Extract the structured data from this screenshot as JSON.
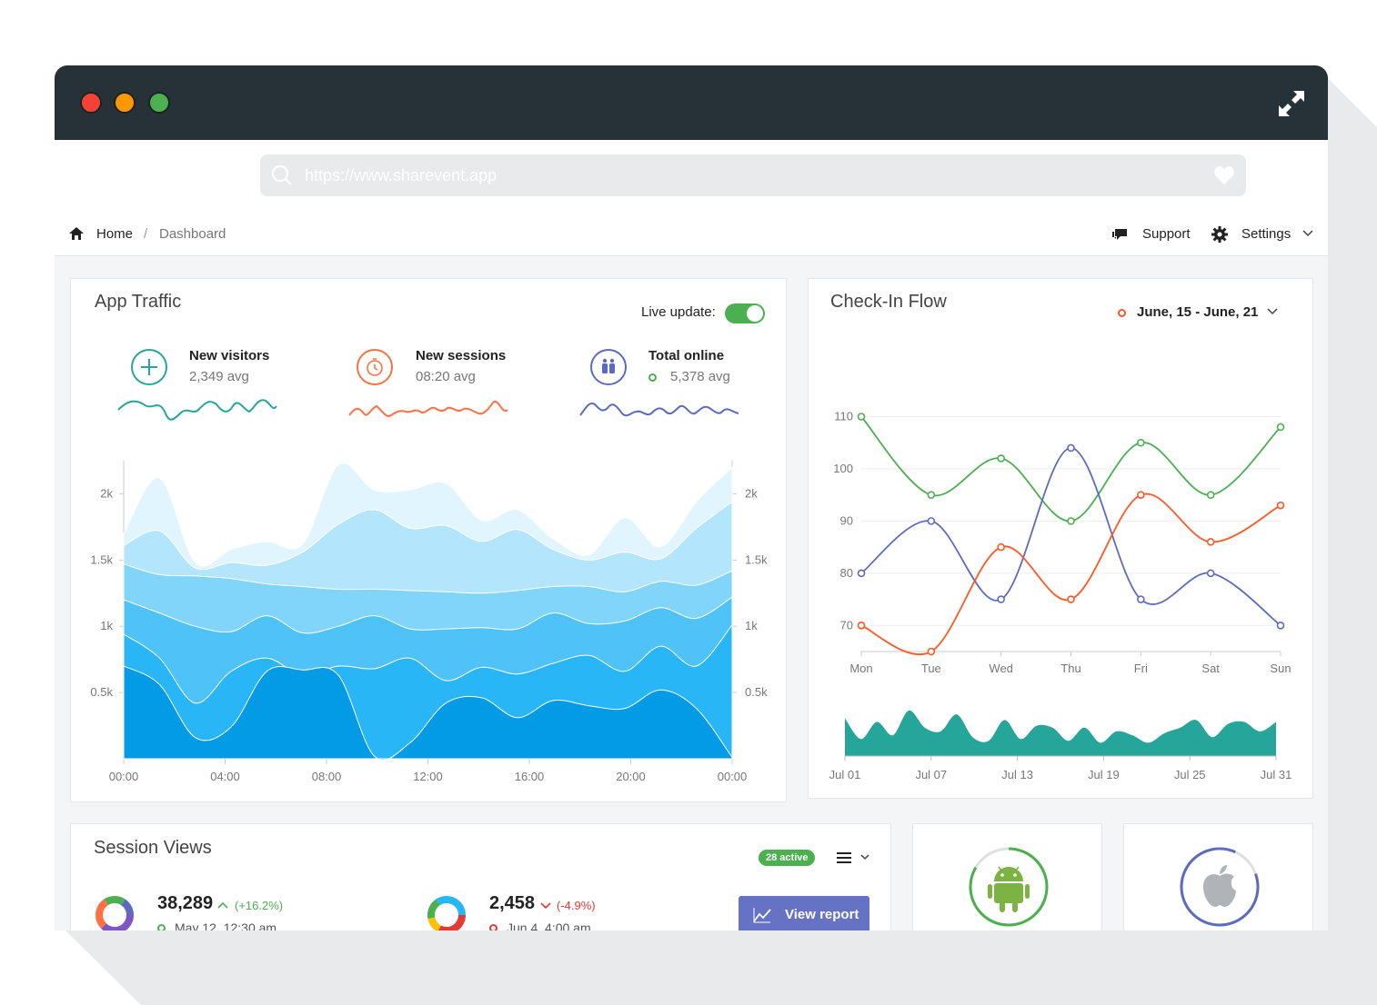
{
  "browser": {
    "url": "https://www.sharevent.app"
  },
  "breadcrumb": {
    "home": "Home",
    "separator": "/",
    "current": "Dashboard"
  },
  "topnav": {
    "support": "Support",
    "settings": "Settings"
  },
  "app_traffic": {
    "title": "App Traffic",
    "live_update_label": "Live update:",
    "live_update_on": true,
    "stats": [
      {
        "label": "New visitors",
        "value": "2,349 avg",
        "color": "#26a69a",
        "icon": "plus-icon"
      },
      {
        "label": "New sessions",
        "value": "08:20 avg",
        "color": "#ff7043",
        "icon": "clock-icon"
      },
      {
        "label": "Total online",
        "value": "5,378 avg",
        "color": "#5c6bc0",
        "icon": "users-icon"
      }
    ]
  },
  "checkin": {
    "title": "Check-In Flow",
    "date_range": "June, 15 - June, 21"
  },
  "session_views": {
    "title": "Session Views",
    "badge": "28 active",
    "view_report": "View report",
    "items": [
      {
        "value": "38,289",
        "change": "(+16.2%)",
        "date": "May 12, 12:30 am",
        "trend": "up",
        "color": "#4caf50"
      },
      {
        "value": "2,458",
        "change": "(-4.9%)",
        "date": "Jun 4, 4:00 am",
        "trend": "down",
        "color": "#e53935"
      }
    ]
  },
  "platforms": [
    {
      "name": "android-icon",
      "color": "#4caf50"
    },
    {
      "name": "apple-icon",
      "color": "#5c6bc0"
    }
  ],
  "chart_data": [
    {
      "type": "area",
      "stacked": true,
      "x_ticks": [
        "00:00",
        "04:00",
        "08:00",
        "12:00",
        "16:00",
        "20:00",
        "00:00"
      ],
      "y_ticks": [
        "0.5k",
        "1k",
        "1.5k",
        "2k"
      ],
      "ylim": [
        0,
        2250
      ],
      "colors": [
        "#039be5",
        "#29b6f6",
        "#4fc3f7",
        "#81d4fa",
        "#b3e5fc",
        "#e1f5fe"
      ],
      "layers": [
        [
          700,
          560,
          160,
          240,
          660,
          670,
          630,
          20,
          120,
          420,
          460,
          310,
          440,
          400,
          380,
          520,
          380,
          10
        ],
        [
          940,
          760,
          420,
          660,
          760,
          630,
          700,
          680,
          760,
          590,
          690,
          640,
          720,
          780,
          660,
          850,
          700,
          1010
        ],
        [
          1200,
          1100,
          1000,
          960,
          1080,
          950,
          1000,
          1080,
          980,
          980,
          990,
          980,
          1100,
          1020,
          1040,
          1140,
          1060,
          1220
        ],
        [
          1470,
          1390,
          1380,
          1360,
          1320,
          1300,
          1280,
          1280,
          1270,
          1260,
          1250,
          1270,
          1300,
          1300,
          1260,
          1340,
          1310,
          1420
        ],
        [
          1610,
          1720,
          1440,
          1480,
          1460,
          1560,
          1770,
          1880,
          1740,
          1760,
          1640,
          1730,
          1580,
          1500,
          1560,
          1510,
          1740,
          1940
        ],
        [
          1700,
          2120,
          1480,
          1580,
          1640,
          1620,
          2220,
          2030,
          2030,
          2080,
          1800,
          1880,
          1660,
          1540,
          1820,
          1600,
          1940,
          2200
        ]
      ]
    },
    {
      "type": "line",
      "categories": [
        "Mon",
        "Tue",
        "Wed",
        "Thu",
        "Fri",
        "Sat",
        "Sun"
      ],
      "y_ticks": [
        70,
        80,
        90,
        100,
        110
      ],
      "ylim": [
        65,
        112
      ],
      "series": [
        {
          "color": "#4caf50",
          "values": [
            110,
            95,
            102,
            90,
            105,
            95,
            108
          ]
        },
        {
          "color": "#5c6bc0",
          "values": [
            80,
            90,
            75,
            104,
            75,
            80,
            70
          ]
        },
        {
          "color": "#ff5722",
          "values": [
            70,
            65,
            85,
            75,
            95,
            86,
            93
          ]
        }
      ]
    },
    {
      "type": "area",
      "color": "#26a69a",
      "x_ticks": [
        "Jul 01",
        "Jul 07",
        "Jul 13",
        "Jul 19",
        "Jul 25",
        "Jul 31"
      ],
      "values": [
        40,
        18,
        36,
        22,
        48,
        30,
        26,
        44,
        20,
        16,
        38,
        18,
        32,
        30,
        16,
        30,
        14,
        26,
        22,
        14,
        24,
        30,
        38,
        20,
        34,
        36,
        26,
        36
      ]
    }
  ]
}
